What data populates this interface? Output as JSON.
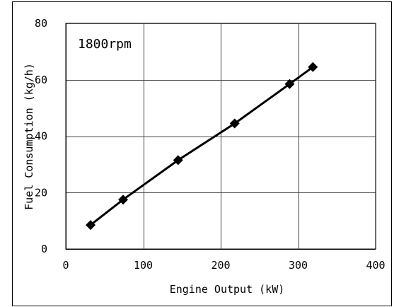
{
  "chart_data": {
    "type": "line",
    "title": "",
    "xlabel": "Engine Output (kW)",
    "ylabel": "Fuel Consumption (kg/h)",
    "xlim": [
      0,
      400
    ],
    "ylim": [
      0,
      80
    ],
    "xticks": [
      0,
      100,
      200,
      300,
      400
    ],
    "yticks": [
      0,
      20,
      40,
      60,
      80
    ],
    "grid": true,
    "annotation": "1800rpm",
    "line_color": "#000000",
    "marker": "diamond",
    "series": [
      {
        "x": [
          32,
          74,
          145,
          218,
          289,
          319
        ],
        "y": [
          8.5,
          17.5,
          31.5,
          44.5,
          58.5,
          64.5
        ]
      }
    ]
  }
}
